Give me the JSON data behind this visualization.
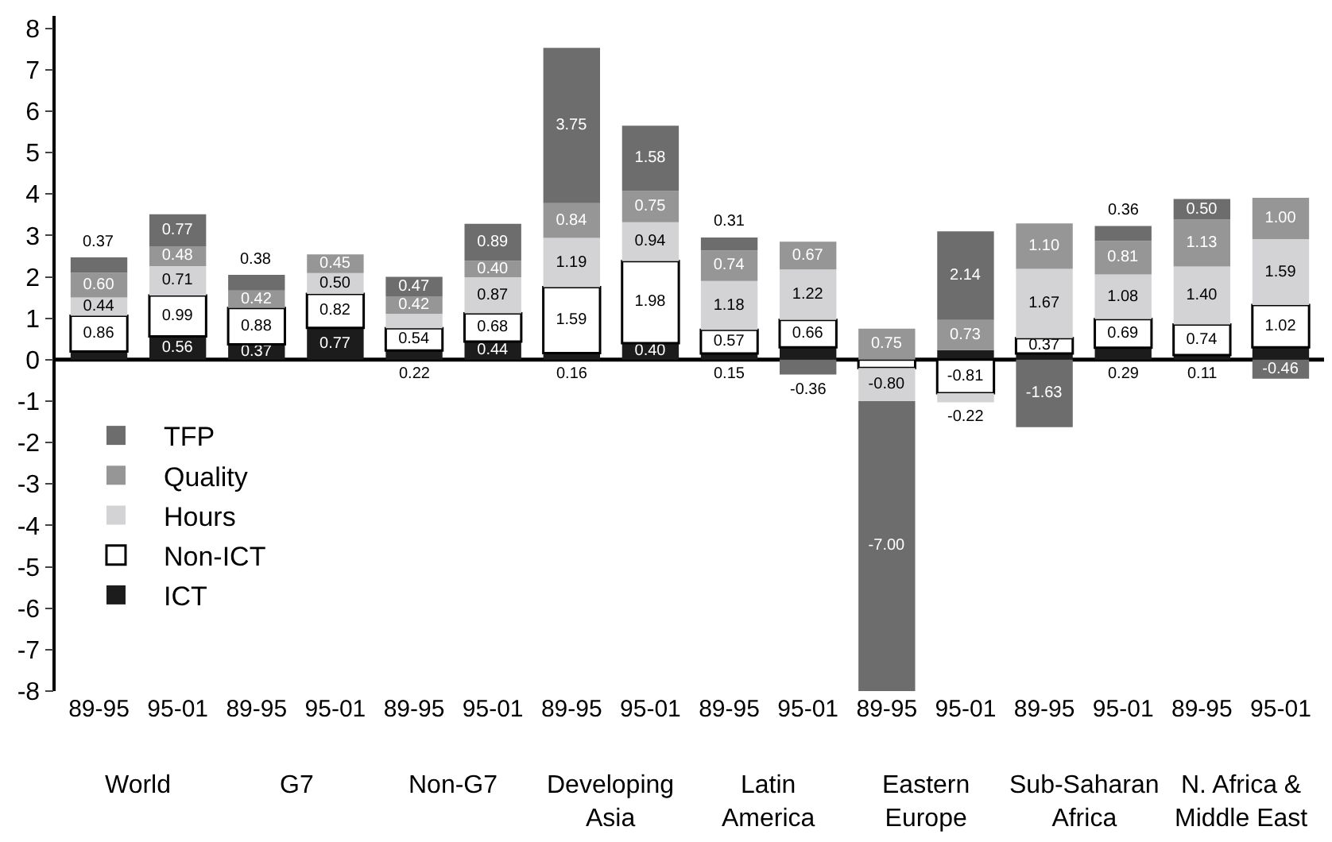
{
  "chart_data": {
    "type": "bar",
    "stacked": true,
    "categories": [
      "89-95",
      "95-01",
      "89-95",
      "95-01",
      "89-95",
      "95-01",
      "89-95",
      "95-01",
      "89-95",
      "95-01",
      "89-95",
      "95-01",
      "89-95",
      "95-01",
      "89-95",
      "95-01"
    ],
    "series": [
      {
        "name": "ICT",
        "color": "#1c1c1c",
        "values": [
          0.2,
          0.56,
          0.37,
          0.77,
          0.22,
          0.44,
          0.16,
          0.4,
          0.15,
          0.3,
          null,
          0.23,
          0.15,
          0.29,
          0.11,
          0.3
        ],
        "value_labels": [
          null,
          "0.56",
          "0.37",
          "0.77",
          "0.22",
          "0.44",
          "0.16",
          "0.40",
          "0.15",
          null,
          null,
          null,
          null,
          "0.29",
          "0.11",
          null
        ]
      },
      {
        "name": "Non-ICT",
        "color": "#ffffff",
        "values": [
          0.86,
          0.99,
          0.88,
          0.82,
          0.54,
          0.68,
          1.59,
          1.98,
          0.57,
          0.66,
          -0.2,
          -0.81,
          0.37,
          0.69,
          0.74,
          1.02
        ],
        "value_labels": [
          "0.86",
          "0.99",
          "0.88",
          "0.82",
          "0.54",
          "0.68",
          "1.59",
          "1.98",
          "0.57",
          "0.66",
          null,
          "-0.81",
          "0.37",
          "0.69",
          "0.74",
          "1.02"
        ]
      },
      {
        "name": "Hours",
        "color": "#d3d3d5",
        "values": [
          0.44,
          0.71,
          0.0,
          0.5,
          0.35,
          0.87,
          1.19,
          0.94,
          1.18,
          1.22,
          -0.8,
          -0.22,
          1.67,
          1.08,
          1.4,
          1.59
        ],
        "value_labels": [
          "0.44",
          "0.71",
          null,
          "0.50",
          null,
          "0.87",
          "1.19",
          "0.94",
          "1.18",
          "1.22",
          "-0.80",
          "-0.22",
          "1.67",
          "1.08",
          "1.40",
          "1.59"
        ]
      },
      {
        "name": "Quality",
        "color": "#969696",
        "values": [
          0.6,
          0.48,
          0.42,
          0.45,
          0.42,
          0.4,
          0.84,
          0.75,
          0.74,
          0.67,
          0.75,
          0.73,
          1.1,
          0.81,
          1.13,
          1.0
        ],
        "value_labels": [
          "0.60",
          "0.48",
          "0.42",
          "0.45",
          "0.42",
          "0.40",
          "0.84",
          "0.75",
          "0.74",
          "0.67",
          "0.75",
          "0.73",
          "1.10",
          "0.81",
          "1.13",
          "1.00"
        ]
      },
      {
        "name": "TFP",
        "color": "#6d6d6d",
        "values": [
          0.37,
          0.77,
          0.38,
          0.0,
          0.47,
          0.89,
          3.75,
          1.58,
          0.31,
          -0.36,
          -7.0,
          2.14,
          -1.63,
          0.36,
          0.5,
          -0.46
        ],
        "value_labels": [
          "0.37",
          "0.77",
          "0.38",
          null,
          "0.47",
          "0.89",
          "3.75",
          "1.58",
          "0.31",
          "-0.36",
          "-7.00",
          "2.14",
          "-1.63",
          "0.36",
          "0.50",
          "-0.46"
        ]
      }
    ],
    "annotations": [
      "World",
      "G7",
      "Non-G7",
      "Developing\nAsia",
      "Latin\nAmerica",
      "Eastern\nEurope",
      "Sub-Saharan\nAfrica",
      "N. Africa &\nMiddle East"
    ],
    "ylim": [
      -8,
      8.3
    ],
    "yticks": [
      -8,
      -7,
      -6,
      -5,
      -4,
      -3,
      -2,
      -1,
      0,
      1,
      2,
      3,
      4,
      5,
      6,
      7,
      8
    ],
    "legend": "left",
    "ref_lines": [
      {
        "axis": "y",
        "value": 0,
        "color": "#000000"
      }
    ]
  }
}
